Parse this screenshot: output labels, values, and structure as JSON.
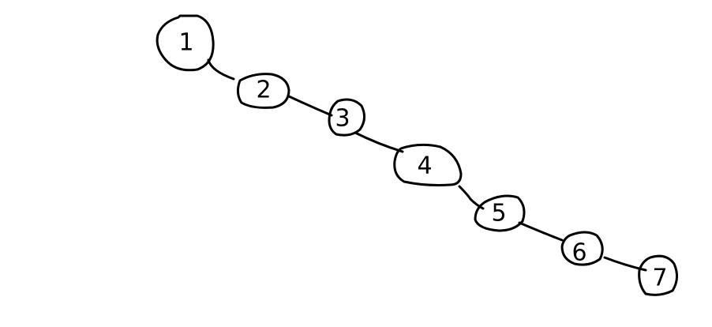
{
  "diagram": {
    "type": "chain",
    "nodes": [
      {
        "id": "n1",
        "label": "1"
      },
      {
        "id": "n2",
        "label": "2"
      },
      {
        "id": "n3",
        "label": "3"
      },
      {
        "id": "n4",
        "label": "4"
      },
      {
        "id": "n5",
        "label": "5"
      },
      {
        "id": "n6",
        "label": "6"
      },
      {
        "id": "n7",
        "label": "7"
      }
    ],
    "edges": [
      {
        "from": "n1",
        "to": "n2"
      },
      {
        "from": "n2",
        "to": "n3"
      },
      {
        "from": "n3",
        "to": "n4"
      },
      {
        "from": "n4",
        "to": "n5"
      },
      {
        "from": "n5",
        "to": "n6"
      },
      {
        "from": "n6",
        "to": "n7"
      }
    ],
    "stroke_color": "#000000",
    "background_color": "#ffffff"
  }
}
